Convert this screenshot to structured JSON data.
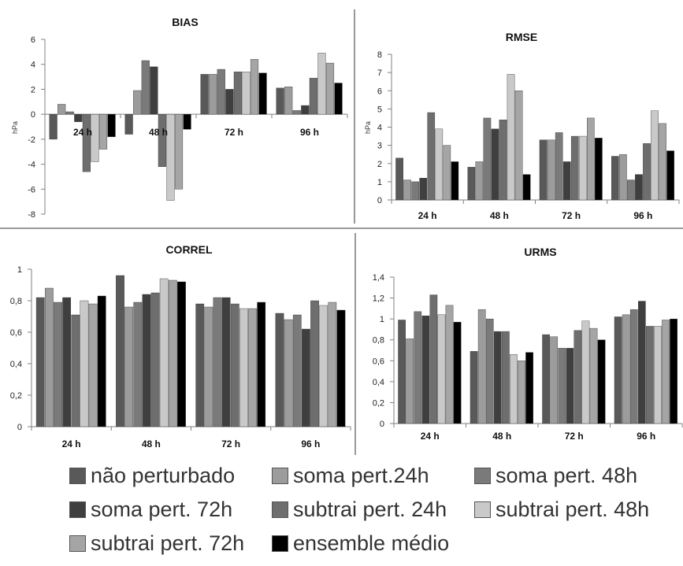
{
  "series_colors": {
    "nao_perturbado": "#595959",
    "soma_pert_24h": "#9c9c9c",
    "soma_pert_48h": "#7a7a7a",
    "soma_pert_72h": "#3f3f3f",
    "subtrai_pert_24h": "#6e6e6e",
    "subtrai_pert_48h": "#c9c9c9",
    "subtrai_pert_72h": "#a5a5a5",
    "ensemble_medio": "#000000"
  },
  "legend": [
    {
      "label": "não perturbado",
      "color": "#595959"
    },
    {
      "label": "soma pert.24h",
      "color": "#9c9c9c"
    },
    {
      "label": "soma pert. 48h",
      "color": "#7a7a7a"
    },
    {
      "label": "soma pert. 72h",
      "color": "#3f3f3f"
    },
    {
      "label": "subtrai pert. 24h",
      "color": "#6e6e6e"
    },
    {
      "label": "subtrai pert. 48h",
      "color": "#c9c9c9"
    },
    {
      "label": "subtrai pert. 72h",
      "color": "#a5a5a5"
    },
    {
      "label": "ensemble médio",
      "color": "#000000"
    }
  ],
  "chart_data": [
    {
      "type": "bar",
      "title": "BIAS",
      "ylabel": "hPa",
      "categories": [
        "24 h",
        "48 h",
        "72 h",
        "96 h"
      ],
      "ylim": [
        -8,
        6
      ],
      "yticks": [
        -8,
        -6,
        -4,
        -2,
        0,
        2,
        4,
        6
      ],
      "ytick_labels": [
        "-8",
        "-6",
        "-4",
        "-2",
        "0",
        "2",
        "4",
        "6"
      ],
      "series": [
        {
          "name": "não perturbado",
          "values": [
            -2.0,
            -1.6,
            3.2,
            2.1
          ]
        },
        {
          "name": "soma pert.24h",
          "values": [
            0.8,
            1.9,
            3.2,
            2.2
          ]
        },
        {
          "name": "soma pert. 48h",
          "values": [
            0.2,
            4.3,
            3.6,
            0.3
          ]
        },
        {
          "name": "soma pert. 72h",
          "values": [
            -0.6,
            3.8,
            2.0,
            0.7
          ]
        },
        {
          "name": "subtrai pert. 24h",
          "values": [
            -4.6,
            -4.2,
            3.4,
            2.9
          ]
        },
        {
          "name": "subtrai pert. 48h",
          "values": [
            -3.8,
            -6.9,
            3.4,
            4.9
          ]
        },
        {
          "name": "subtrai pert. 72h",
          "values": [
            -2.8,
            -6.0,
            4.4,
            4.1
          ]
        },
        {
          "name": "ensemble médio",
          "values": [
            -1.8,
            -1.2,
            3.3,
            2.5
          ]
        }
      ]
    },
    {
      "type": "bar",
      "title": "RMSE",
      "ylabel": "hPa",
      "categories": [
        "24 h",
        "48 h",
        "72 h",
        "96 h"
      ],
      "ylim": [
        0,
        8
      ],
      "yticks": [
        0,
        1,
        2,
        3,
        4,
        5,
        6,
        7,
        8
      ],
      "ytick_labels": [
        "0",
        "1",
        "2",
        "3",
        "4",
        "5",
        "6",
        "7",
        "8"
      ],
      "series": [
        {
          "name": "não perturbado",
          "values": [
            2.3,
            1.8,
            3.3,
            2.4
          ]
        },
        {
          "name": "soma pert.24h",
          "values": [
            1.1,
            2.1,
            3.3,
            2.5
          ]
        },
        {
          "name": "soma pert. 48h",
          "values": [
            1.0,
            4.5,
            3.7,
            1.1
          ]
        },
        {
          "name": "soma pert. 72h",
          "values": [
            1.2,
            3.9,
            2.1,
            1.4
          ]
        },
        {
          "name": "subtrai pert. 24h",
          "values": [
            4.8,
            4.4,
            3.5,
            3.1
          ]
        },
        {
          "name": "subtrai pert. 48h",
          "values": [
            3.9,
            6.9,
            3.5,
            4.9
          ]
        },
        {
          "name": "subtrai pert. 72h",
          "values": [
            3.0,
            6.0,
            4.5,
            4.2
          ]
        },
        {
          "name": "ensemble médio",
          "values": [
            2.1,
            1.4,
            3.4,
            2.7
          ]
        }
      ]
    },
    {
      "type": "bar",
      "title": "CORREL",
      "ylabel": "",
      "categories": [
        "24 h",
        "48 h",
        "72 h",
        "96 h"
      ],
      "ylim": [
        0,
        1
      ],
      "yticks": [
        0,
        0.2,
        0.4,
        0.6,
        0.8,
        1
      ],
      "ytick_labels": [
        "0",
        "0,2",
        "0,4",
        "0,6",
        "0,8",
        "1"
      ],
      "series": [
        {
          "name": "não perturbado",
          "values": [
            0.82,
            0.96,
            0.78,
            0.72
          ]
        },
        {
          "name": "soma pert.24h",
          "values": [
            0.88,
            0.76,
            0.76,
            0.68
          ]
        },
        {
          "name": "soma pert. 48h",
          "values": [
            0.79,
            0.79,
            0.82,
            0.71
          ]
        },
        {
          "name": "soma pert. 72h",
          "values": [
            0.82,
            0.84,
            0.82,
            0.62
          ]
        },
        {
          "name": "subtrai pert. 24h",
          "values": [
            0.71,
            0.85,
            0.78,
            0.8
          ]
        },
        {
          "name": "subtrai pert. 48h",
          "values": [
            0.8,
            0.94,
            0.75,
            0.77
          ]
        },
        {
          "name": "subtrai pert. 72h",
          "values": [
            0.78,
            0.93,
            0.75,
            0.79
          ]
        },
        {
          "name": "ensemble médio",
          "values": [
            0.83,
            0.92,
            0.79,
            0.74
          ]
        }
      ]
    },
    {
      "type": "bar",
      "title": "URMS",
      "ylabel": "",
      "categories": [
        "24 h",
        "48 h",
        "72 h",
        "96 h"
      ],
      "ylim": [
        0,
        1.4
      ],
      "yticks": [
        0,
        0.2,
        0.4,
        0.6,
        0.8,
        1,
        1.2,
        1.4
      ],
      "ytick_labels": [
        "0",
        "0,2",
        "0,4",
        "0,6",
        "0,8",
        "1",
        "1,2",
        "1,4"
      ],
      "series": [
        {
          "name": "não perturbado",
          "values": [
            0.99,
            0.69,
            0.85,
            1.02
          ]
        },
        {
          "name": "soma pert.24h",
          "values": [
            0.81,
            1.09,
            0.83,
            1.04
          ]
        },
        {
          "name": "soma pert. 48h",
          "values": [
            1.07,
            1.0,
            0.72,
            1.09
          ]
        },
        {
          "name": "soma pert. 72h",
          "values": [
            1.03,
            0.88,
            0.72,
            1.17
          ]
        },
        {
          "name": "subtrai pert. 24h",
          "values": [
            1.23,
            0.88,
            0.89,
            0.93
          ]
        },
        {
          "name": "subtrai pert. 48h",
          "values": [
            1.04,
            0.66,
            0.98,
            0.93
          ]
        },
        {
          "name": "subtrai pert. 72h",
          "values": [
            1.13,
            0.6,
            0.91,
            0.99
          ]
        },
        {
          "name": "ensemble médio",
          "values": [
            0.97,
            0.68,
            0.8,
            1.0
          ]
        }
      ]
    }
  ]
}
